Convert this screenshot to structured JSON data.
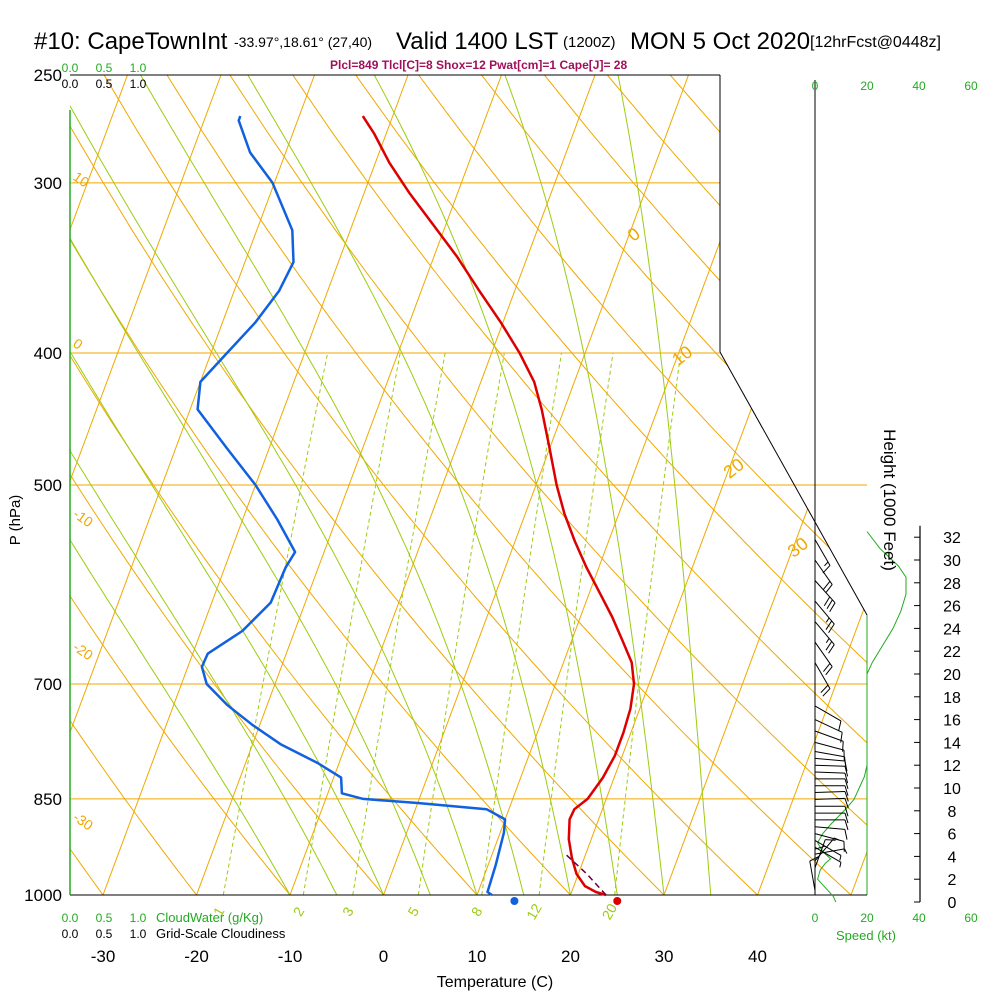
{
  "header": {
    "station": "#10: CapeTownInt",
    "coords": "-33.97°,18.61° (27,40)",
    "valid": "Valid 1400 LST",
    "zulu": "(1200Z)",
    "date": "MON 5 Oct 2020",
    "forecast": "[12hrFcst@0448z]",
    "indices": "Plcl=849 Tlcl[C]=8 Shox=12 Pwat[cm]=1 Cape[J]= 28"
  },
  "colors": {
    "isotherm": "#f0a800",
    "dry_adiabat": "#f0a800",
    "moist_adiabat": "#9ccc10",
    "mixing_ratio": "#9ccc10",
    "temperature": "#dd0000",
    "dewpoint": "#1060e0",
    "parcel": "#6a0040",
    "wind_speed": "#22aa22",
    "label_green": "#22aa22",
    "indices": "#a0105a"
  },
  "chart_data": {
    "type": "line",
    "title": "#10: CapeTownInt Valid 1400 LST MON 5 Oct 2020",
    "xlabel": "Temperature (C)",
    "ylabel": "P (hPa)",
    "right_ylabel": "Height (1000 Feet)",
    "x_ticks": [
      "-30",
      "-20",
      "-10",
      "0",
      "10",
      "20",
      "30",
      "40"
    ],
    "x_tick_values": [
      -30,
      -20,
      -10,
      0,
      10,
      20,
      30,
      40
    ],
    "pressure_ticks": [
      "250",
      "300",
      "400",
      "500",
      "700",
      "850",
      "1000"
    ],
    "pressure_tick_values": [
      250,
      300,
      400,
      500,
      700,
      850,
      1000
    ],
    "height_ticks": [
      "0",
      "2",
      "4",
      "6",
      "8",
      "10",
      "12",
      "14",
      "16",
      "18",
      "20",
      "22",
      "24",
      "26",
      "28",
      "30",
      "32"
    ],
    "height_tick_values": [
      0,
      2,
      4,
      6,
      8,
      10,
      12,
      14,
      16,
      18,
      20,
      22,
      24,
      26,
      28,
      30,
      32
    ],
    "isotherm_labels": [
      {
        "text": "0",
        "t": 0,
        "p": 330
      },
      {
        "text": "10",
        "t": 10,
        "p": 405
      },
      {
        "text": "20",
        "t": 20,
        "p": 490
      },
      {
        "text": "30",
        "t": 30,
        "p": 560
      }
    ],
    "adiabat_labels": [
      {
        "text": "10",
        "p": 298
      },
      {
        "text": "0",
        "p": 395
      },
      {
        "text": "-10",
        "p": 527
      },
      {
        "text": "-20",
        "p": 660
      },
      {
        "text": "-30",
        "p": 880
      }
    ],
    "mixing_ratio_values": [
      1,
      2,
      3,
      5,
      8,
      12,
      20
    ],
    "mixing_ratio_labels": [
      "1",
      "2",
      "3",
      "5",
      "8",
      "12",
      "20"
    ],
    "temperature": {
      "name": "Temperature",
      "points": [
        {
          "p": 1000,
          "t": 23.8
        },
        {
          "p": 995,
          "t": 22.6
        },
        {
          "p": 985,
          "t": 21.2
        },
        {
          "p": 965,
          "t": 19.8
        },
        {
          "p": 940,
          "t": 18.7
        },
        {
          "p": 910,
          "t": 17.6
        },
        {
          "p": 880,
          "t": 16.9
        },
        {
          "p": 865,
          "t": 17.0
        },
        {
          "p": 850,
          "t": 18.0
        },
        {
          "p": 820,
          "t": 18.8
        },
        {
          "p": 790,
          "t": 19.2
        },
        {
          "p": 760,
          "t": 19.2
        },
        {
          "p": 730,
          "t": 19.0
        },
        {
          "p": 700,
          "t": 18.4
        },
        {
          "p": 675,
          "t": 17.3
        },
        {
          "p": 650,
          "t": 15.4
        },
        {
          "p": 625,
          "t": 13.4
        },
        {
          "p": 600,
          "t": 11.1
        },
        {
          "p": 575,
          "t": 8.7
        },
        {
          "p": 550,
          "t": 6.4
        },
        {
          "p": 525,
          "t": 4.2
        },
        {
          "p": 500,
          "t": 2.2
        },
        {
          "p": 470,
          "t": 0.0
        },
        {
          "p": 440,
          "t": -2.4
        },
        {
          "p": 420,
          "t": -4.3
        },
        {
          "p": 400,
          "t": -7.0
        },
        {
          "p": 380,
          "t": -10.2
        },
        {
          "p": 360,
          "t": -13.8
        },
        {
          "p": 340,
          "t": -17.5
        },
        {
          "p": 320,
          "t": -21.8
        },
        {
          "p": 305,
          "t": -25.2
        },
        {
          "p": 290,
          "t": -28.5
        },
        {
          "p": 276,
          "t": -31.3
        },
        {
          "p": 268,
          "t": -33.2
        }
      ]
    },
    "dewpoint": {
      "name": "Dewpoint",
      "points": [
        {
          "p": 1000,
          "t": 11.6
        },
        {
          "p": 995,
          "t": 11.0
        },
        {
          "p": 950,
          "t": 10.8
        },
        {
          "p": 900,
          "t": 10.4
        },
        {
          "p": 880,
          "t": 10.0
        },
        {
          "p": 865,
          "t": 7.6
        },
        {
          "p": 856,
          "t": 0.0
        },
        {
          "p": 850,
          "t": -6.0
        },
        {
          "p": 842,
          "t": -8.5
        },
        {
          "p": 820,
          "t": -9.2
        },
        {
          "p": 800,
          "t": -12.3
        },
        {
          "p": 775,
          "t": -17.0
        },
        {
          "p": 750,
          "t": -20.8
        },
        {
          "p": 725,
          "t": -24.3
        },
        {
          "p": 700,
          "t": -27.3
        },
        {
          "p": 680,
          "t": -28.5
        },
        {
          "p": 665,
          "t": -28.4
        },
        {
          "p": 640,
          "t": -25.6
        },
        {
          "p": 610,
          "t": -23.7
        },
        {
          "p": 575,
          "t": -23.5
        },
        {
          "p": 560,
          "t": -23.1
        },
        {
          "p": 530,
          "t": -26.3
        },
        {
          "p": 500,
          "t": -30.0
        },
        {
          "p": 470,
          "t": -34.5
        },
        {
          "p": 440,
          "t": -39.2
        },
        {
          "p": 420,
          "t": -40.0
        },
        {
          "p": 400,
          "t": -38.3
        },
        {
          "p": 380,
          "t": -36.5
        },
        {
          "p": 360,
          "t": -35.2
        },
        {
          "p": 343,
          "t": -34.8
        },
        {
          "p": 325,
          "t": -36.2
        },
        {
          "p": 300,
          "t": -40.2
        },
        {
          "p": 285,
          "t": -43.8
        },
        {
          "p": 270,
          "t": -46.3
        },
        {
          "p": 268,
          "t": -46.3
        }
      ]
    },
    "parcel": {
      "name": "Parcel",
      "points": [
        {
          "p": 1000,
          "t": 23.8
        },
        {
          "p": 965,
          "t": 20.9
        },
        {
          "p": 935,
          "t": 18.0
        }
      ]
    },
    "surface_temp": 25,
    "surface_dewpoint": 14,
    "wind_barbs": [
      {
        "h": 1.0,
        "spd": 10,
        "dir": 170
      },
      {
        "h": 2.0,
        "spd": 12,
        "dir": 180
      },
      {
        "h": 3.0,
        "spd": 10,
        "dir": 200
      },
      {
        "h": 3.6,
        "spd": 8,
        "dir": 220
      },
      {
        "h": 4.2,
        "spd": 5,
        "dir": 260
      },
      {
        "h": 4.8,
        "spd": 5,
        "dir": 300
      },
      {
        "h": 5.4,
        "spd": 7,
        "dir": 300
      },
      {
        "h": 6.0,
        "spd": 10,
        "dir": 285
      },
      {
        "h": 6.6,
        "spd": 10,
        "dir": 275
      },
      {
        "h": 7.2,
        "spd": 10,
        "dir": 270
      },
      {
        "h": 7.8,
        "spd": 10,
        "dir": 270
      },
      {
        "h": 8.4,
        "spd": 10,
        "dir": 270
      },
      {
        "h": 9.0,
        "spd": 10,
        "dir": 268
      },
      {
        "h": 9.6,
        "spd": 10,
        "dir": 268
      },
      {
        "h": 10.2,
        "spd": 10,
        "dir": 270
      },
      {
        "h": 10.8,
        "spd": 10,
        "dir": 270
      },
      {
        "h": 11.4,
        "spd": 10,
        "dir": 272
      },
      {
        "h": 12.0,
        "spd": 10,
        "dir": 272
      },
      {
        "h": 12.6,
        "spd": 10,
        "dir": 275
      },
      {
        "h": 13.2,
        "spd": 10,
        "dir": 280
      },
      {
        "h": 14.0,
        "spd": 10,
        "dir": 285
      },
      {
        "h": 15.0,
        "spd": 10,
        "dir": 290
      },
      {
        "h": 16.0,
        "spd": 10,
        "dir": 295
      },
      {
        "h": 17.2,
        "spd": 10,
        "dir": 300
      },
      {
        "h": 21.0,
        "spd": 20,
        "dir": 330
      },
      {
        "h": 22.8,
        "spd": 20,
        "dir": 325
      },
      {
        "h": 24.6,
        "spd": 25,
        "dir": 320
      },
      {
        "h": 26.4,
        "spd": 25,
        "dir": 320
      },
      {
        "h": 28.2,
        "spd": 30,
        "dir": 318
      },
      {
        "h": 30.0,
        "spd": 20,
        "dir": 325
      },
      {
        "h": 31.8,
        "spd": 15,
        "dir": 330
      }
    ],
    "wind_speed_kt": {
      "name": "Speed (kt)",
      "points": [
        {
          "h": 0.0,
          "spd": 8
        },
        {
          "h": 0.5,
          "spd": 7
        },
        {
          "h": 1.0,
          "spd": 5
        },
        {
          "h": 1.5,
          "spd": 3
        },
        {
          "h": 2.0,
          "spd": 1
        },
        {
          "h": 2.8,
          "spd": 2
        },
        {
          "h": 3.4,
          "spd": 4
        },
        {
          "h": 3.8,
          "spd": 6
        },
        {
          "h": 4.4,
          "spd": 3
        },
        {
          "h": 5.2,
          "spd": 1
        },
        {
          "h": 6.0,
          "spd": 3
        },
        {
          "h": 6.8,
          "spd": 6
        },
        {
          "h": 7.5,
          "spd": 9
        },
        {
          "h": 8.2,
          "spd": 12
        },
        {
          "h": 9.0,
          "spd": 15
        },
        {
          "h": 10.0,
          "spd": 17
        },
        {
          "h": 11.0,
          "spd": 19
        },
        {
          "h": 12.0,
          "spd": 20
        },
        {
          "h": 13.0,
          "spd": 20
        },
        {
          "h": 16.0,
          "spd": 20
        },
        {
          "h": 18.0,
          "spd": 20
        },
        {
          "h": 20.0,
          "spd": 20
        },
        {
          "h": 21.0,
          "spd": 22
        },
        {
          "h": 22.5,
          "spd": 26
        },
        {
          "h": 24.0,
          "spd": 30
        },
        {
          "h": 25.5,
          "spd": 33
        },
        {
          "h": 27.0,
          "spd": 35
        },
        {
          "h": 28.5,
          "spd": 35
        },
        {
          "h": 29.5,
          "spd": 32
        },
        {
          "h": 31.0,
          "spd": 25
        },
        {
          "h": 32.5,
          "spd": 20
        }
      ]
    },
    "tropopause_fraction": [
      {
        "h": 0,
        "f": 0.0
      },
      {
        "h": 12.8,
        "f": 1.0
      },
      {
        "h": 24.0,
        "f": 0.0
      }
    ],
    "speed_ticks": [
      "0",
      "20",
      "40",
      "60"
    ],
    "speed_tick_values": [
      0,
      20,
      40,
      60
    ],
    "speed_xlabel": "Speed (kt)",
    "cloudwater_ticks": [
      "0.0",
      "0.5",
      "1.0"
    ],
    "cloudwater_label": "CloudWater (g/Kg)",
    "cloudiness_ticks": [
      "0.0",
      "0.5",
      "1.0"
    ],
    "cloudiness_label": "Grid-Scale Cloudiness"
  }
}
